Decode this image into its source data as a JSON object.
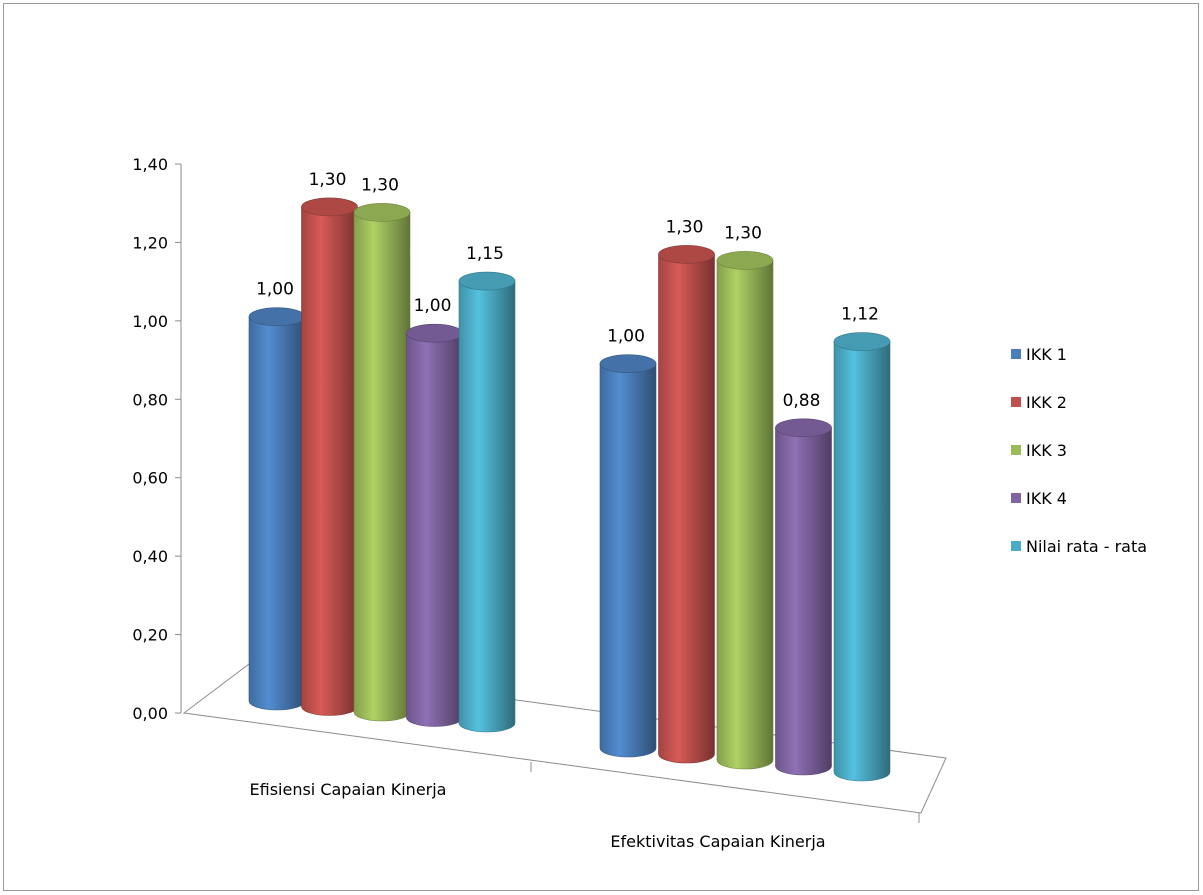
{
  "chart_data": {
    "type": "bar",
    "style": "3d-cylinder",
    "title": "",
    "xlabel": "",
    "ylabel": "",
    "ylim": [
      0,
      1.4
    ],
    "yticks": [
      "0,00",
      "0,20",
      "0,40",
      "0,60",
      "0,80",
      "1,00",
      "1,20",
      "1,40"
    ],
    "grid": false,
    "legend_position": "right",
    "categories": [
      "Efisiensi Capaian Kinerja",
      "Efektivitas Capaian Kinerja"
    ],
    "series": [
      {
        "name": "IKK 1",
        "color": "#4a7ebb",
        "values": [
          1.0,
          1.0
        ],
        "labels": [
          "1,00",
          "1,00"
        ]
      },
      {
        "name": "IKK 2",
        "color": "#c0504d",
        "values": [
          1.3,
          1.3
        ],
        "labels": [
          "1,30",
          "1,30"
        ]
      },
      {
        "name": "IKK 3",
        "color": "#9bbb59",
        "values": [
          1.3,
          1.3
        ],
        "labels": [
          "1,30",
          "1,30"
        ]
      },
      {
        "name": "IKK 4",
        "color": "#8064a2",
        "values": [
          1.0,
          0.88
        ],
        "labels": [
          "1,00",
          "0,88"
        ]
      },
      {
        "name": "Nilai rata - rata",
        "color": "#4bacc6",
        "values": [
          1.15,
          1.12
        ],
        "labels": [
          "1,15",
          "1,12"
        ]
      }
    ]
  }
}
